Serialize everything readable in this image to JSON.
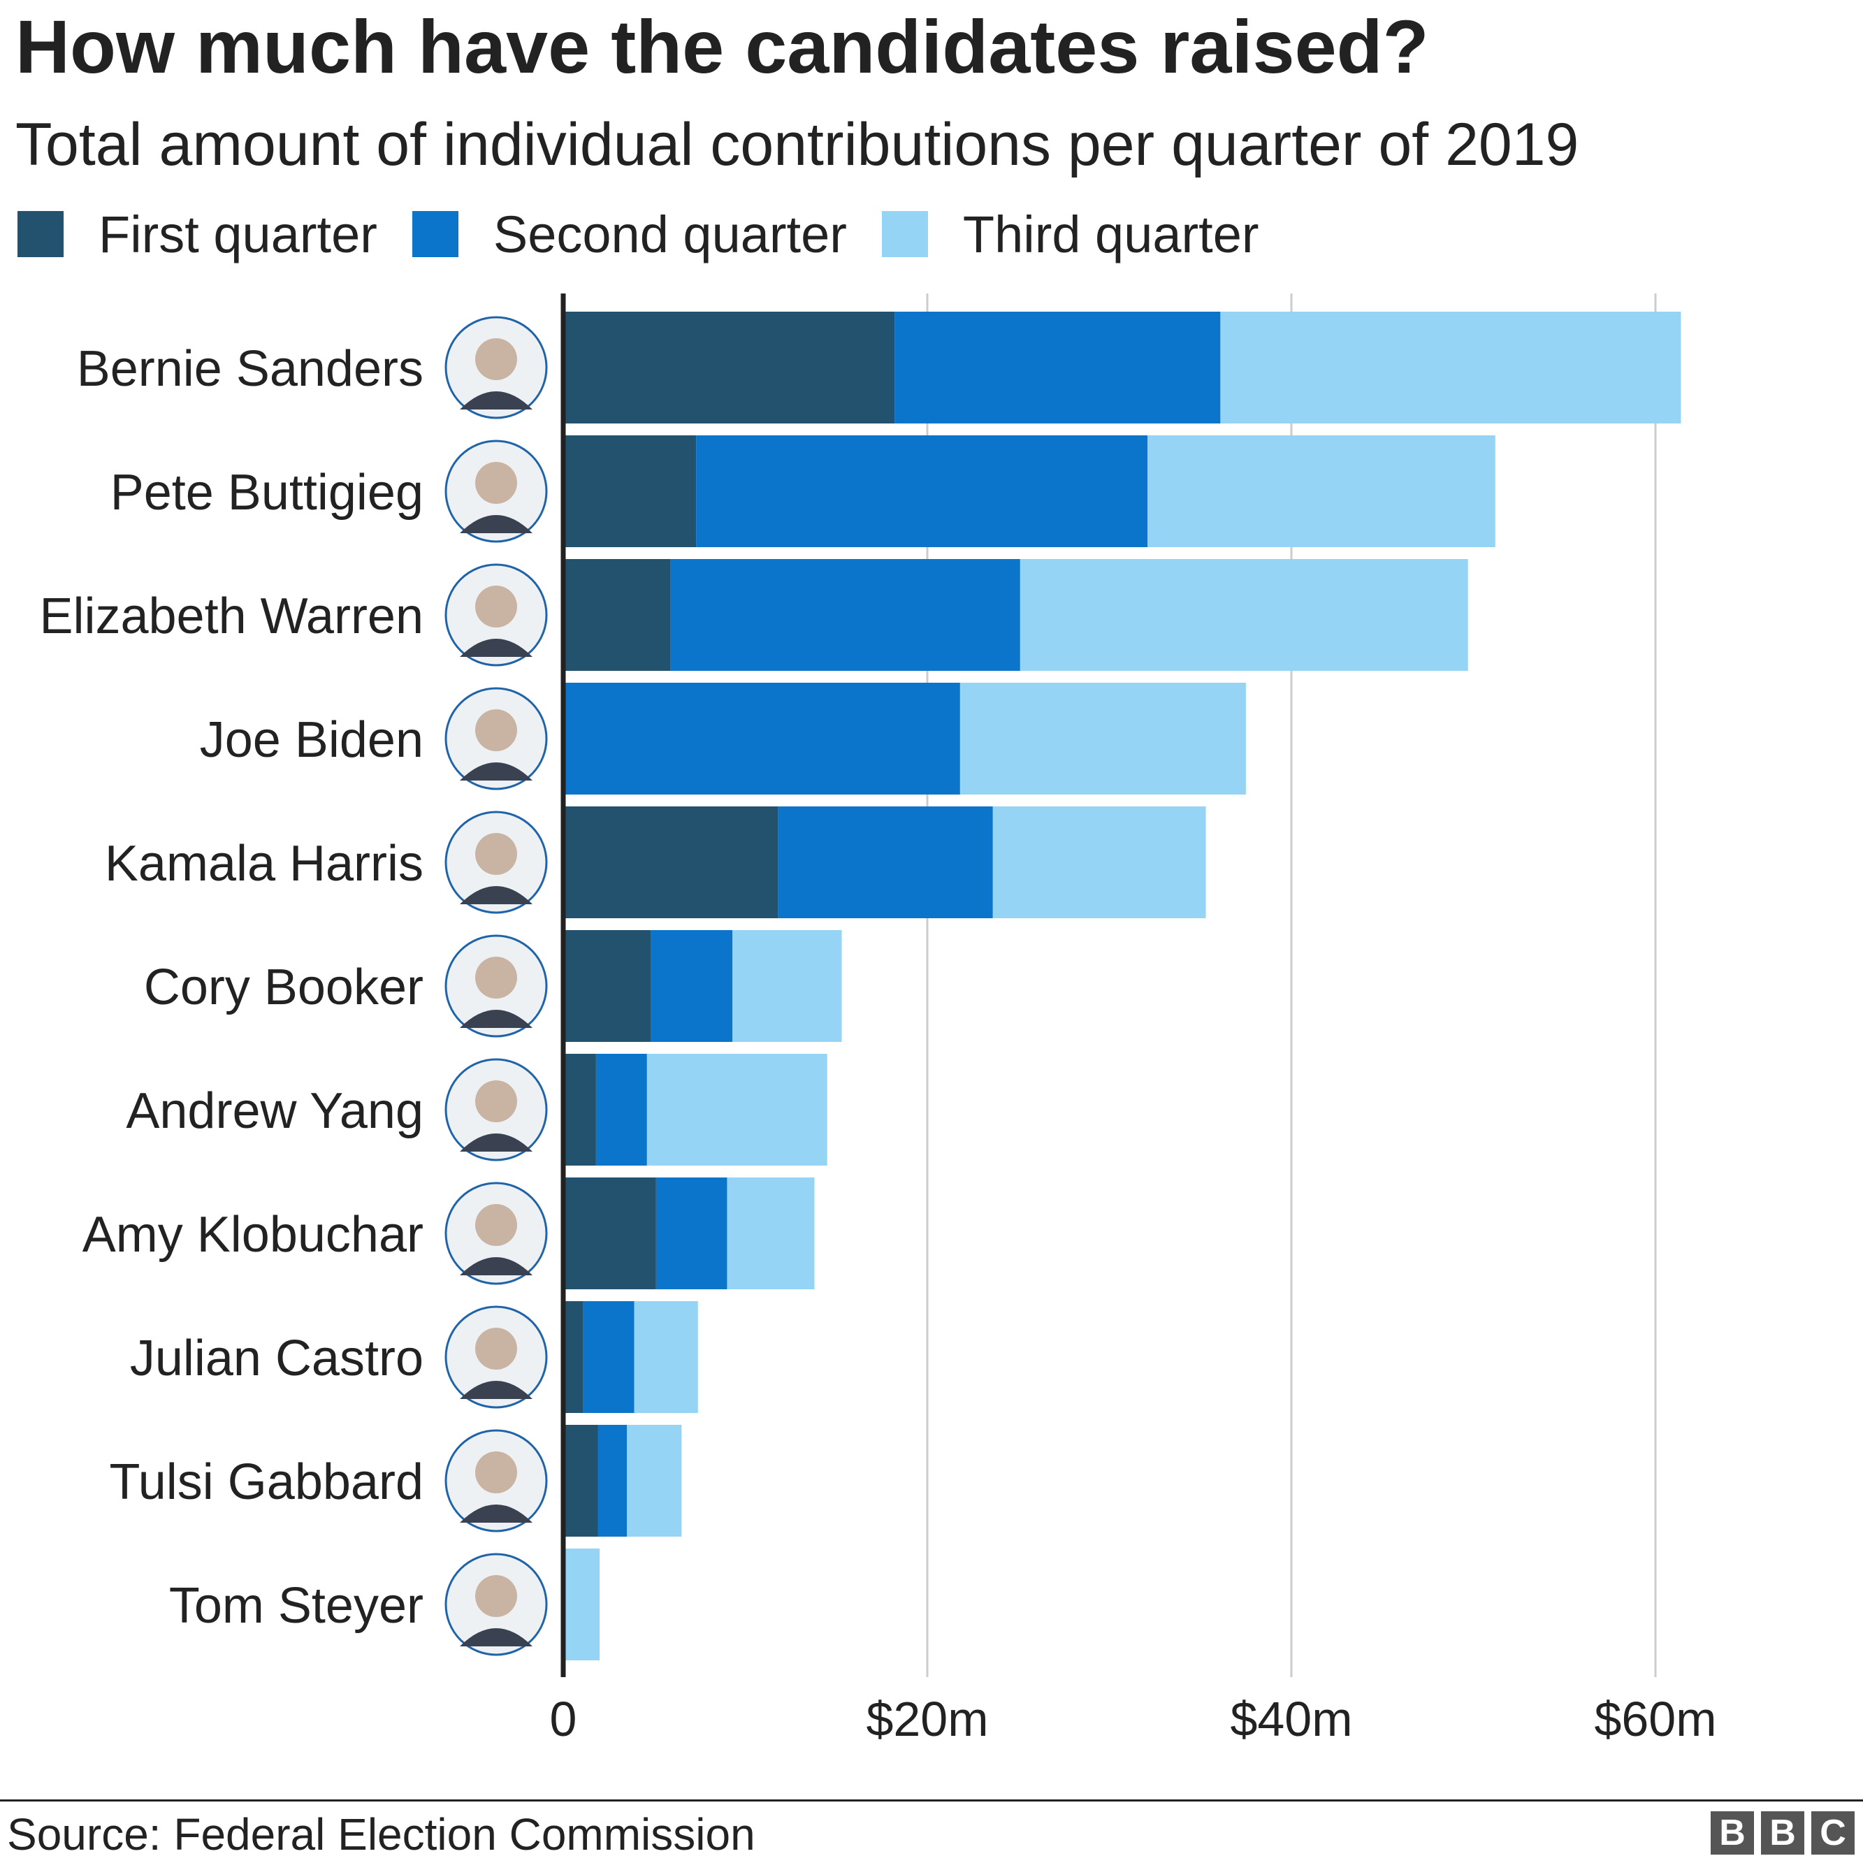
{
  "header": {
    "title": "How much have the candidates raised?",
    "subtitle": "Total amount of individual contributions per quarter of 2019"
  },
  "footer": {
    "source": "Source: Federal Election Commission",
    "logo_letters": [
      "B",
      "B",
      "C"
    ]
  },
  "colors": {
    "first_quarter": "#23526e",
    "second_quarter": "#0a75cb",
    "third_quarter": "#95d4f4",
    "axis": "#222222",
    "gridline": "#cccccc",
    "avatar_ring": "#1f63a8"
  },
  "chart_data": {
    "type": "bar",
    "orientation": "horizontal",
    "stacked": true,
    "title": "How much have the candidates raised?",
    "subtitle": "Total amount of individual contributions per quarter of 2019",
    "categories": [
      "Bernie Sanders",
      "Pete Buttigieg",
      "Elizabeth Warren",
      "Joe Biden",
      "Kamala Harris",
      "Cory Booker",
      "Andrew Yang",
      "Amy Klobuchar",
      "Julian Castro",
      "Tulsi Gabbard",
      "Tom Steyer"
    ],
    "series": [
      {
        "name": "First quarter",
        "color": "#23526e",
        "values": [
          18.2,
          7.3,
          5.9,
          0,
          11.8,
          4.8,
          1.8,
          5.1,
          1.1,
          1.9,
          0
        ]
      },
      {
        "name": "Second quarter",
        "color": "#0a75cb",
        "values": [
          17.9,
          24.8,
          19.2,
          21.8,
          11.8,
          4.5,
          2.8,
          3.9,
          2.8,
          1.6,
          0
        ]
      },
      {
        "name": "Third quarter",
        "color": "#95d4f4",
        "values": [
          25.3,
          19.1,
          24.6,
          15.7,
          11.7,
          6.0,
          9.9,
          4.8,
          3.5,
          3.0,
          2.0
        ]
      }
    ],
    "xlim": [
      0,
      70
    ],
    "xticks": [
      0,
      20,
      40,
      60
    ],
    "xtick_labels": [
      "0",
      "$20m",
      "$40m",
      "$60m"
    ],
    "grid": true,
    "legend_position": "top-left",
    "candidate_photos": true
  }
}
